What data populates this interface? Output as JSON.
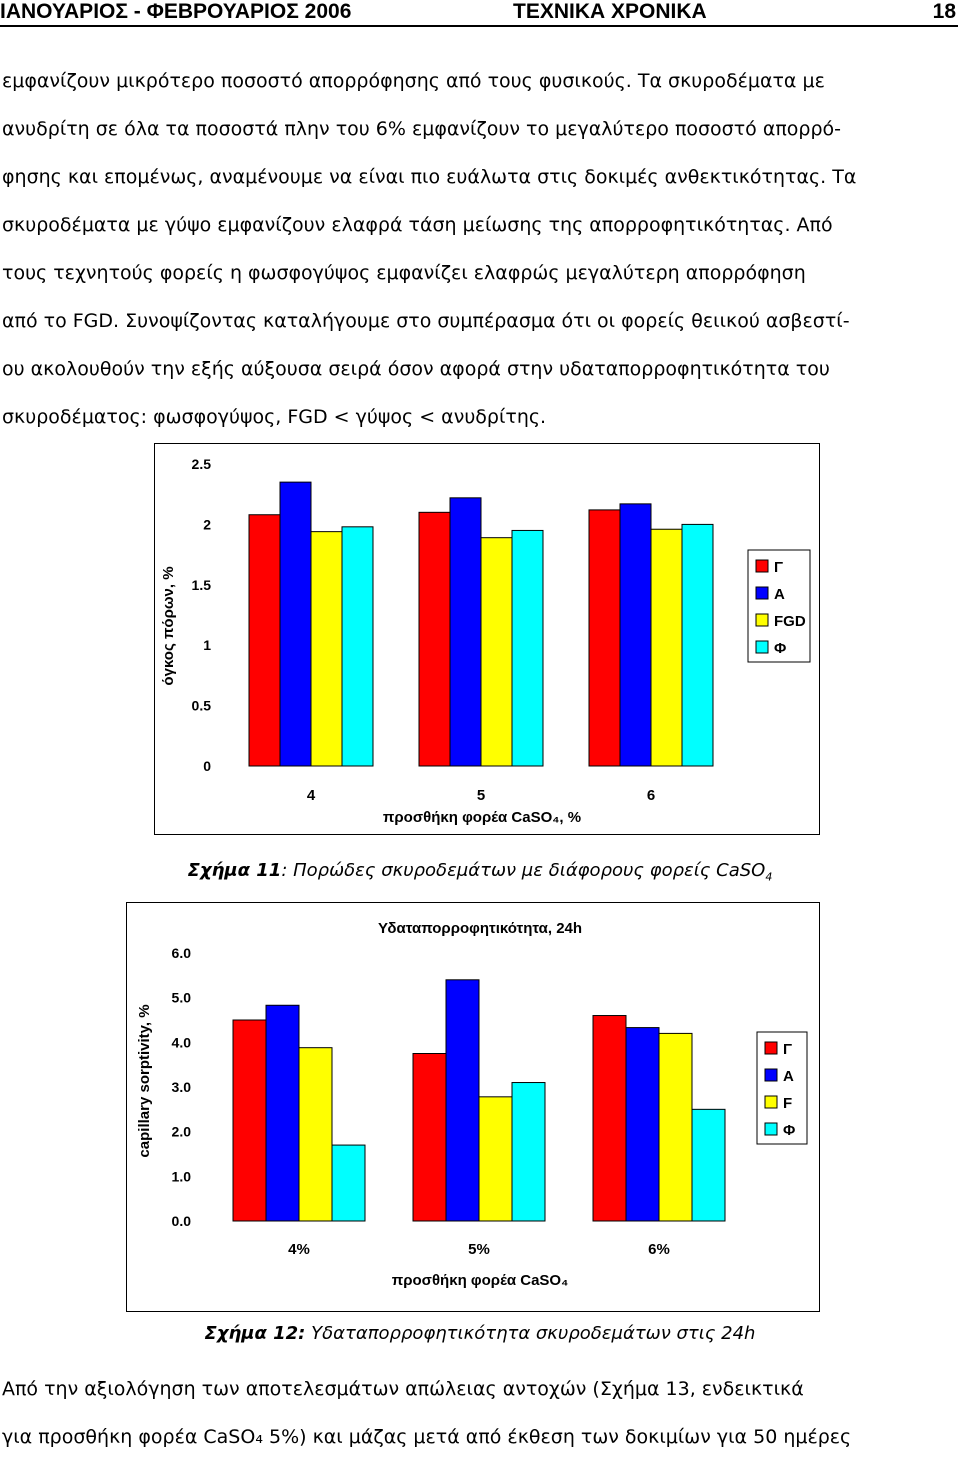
{
  "header": {
    "left": "ΙΑΝΟΥΑΡΙΟΣ - ΦΕΒΡΟΥΑΡΙΟΣ 2006",
    "center": "ΤΕΧΝΙΚΑ ΧΡΟΝΙΚΑ",
    "page": "18"
  },
  "paragraph1": [
    "εμφανίζουν μικρότερο ποσοστό απορρόφησης από τους φυσικούς. Τα σκυροδέματα με",
    "ανυδρίτη σε όλα τα ποσοστά πλην του 6% εμφανίζουν το μεγαλύτερο ποσοστό απορρό-",
    "φησης και επομένως, αναμένουμε να είναι πιο ευάλωτα στις δοκιμές ανθεκτικότητας. Τα",
    "σκυροδέματα με γύψο εμφανίζουν ελαφρά τάση μείωσης της απορροφητικότητας. Από",
    "τους τεχνητούς φορείς η φωσφογύψος εμφανίζει ελαφρώς μεγαλύτερη απορρόφηση",
    "από το FGD. Συνοψίζοντας καταλήγουμε στο συμπέρασμα ότι οι φορείς θειικού ασβεστί-",
    "ου ακολουθούν την εξής αύξουσα σειρά όσον αφορά στην υδαταπορροφητικότητα του",
    "σκυροδέματος: φωσφογύψος, FGD < γύψος < ανυδρίτης."
  ],
  "figure11": {
    "caption_label": "Σχήμα 11",
    "caption_text": ": Πορώδες σκυροδεμάτων με διάφορους φορείς CaSO",
    "caption_sub": "4"
  },
  "figure12": {
    "caption_label": "Σχήμα 12:",
    "caption_text": " Υδαταπορροφητικότητα σκυροδεμάτων στις 24h"
  },
  "paragraph2": [
    "Από την αξιολόγηση των αποτελεσμάτων απώλειας αντοχών (Σχήμα 13, ενδεικτικά",
    "για προσθήκη φορέα CaSO₄ 5%) και μάζας μετά από έκθεση των δοκιμίων για 50 ημέρες"
  ],
  "chart_data": [
    {
      "type": "bar",
      "title": "",
      "xlabel": "προσθήκη φορέα CaSO₄, %",
      "ylabel": "όγκος πόρων, %",
      "categories": [
        "4",
        "5",
        "6"
      ],
      "yticks": [
        "0",
        "0.5",
        "1",
        "1.5",
        "2",
        "2.5"
      ],
      "ylim": [
        0,
        2.5
      ],
      "legend": "right",
      "grid": false,
      "series": [
        {
          "name": "Γ",
          "color": "#ff0000",
          "values": [
            2.08,
            2.1,
            2.12
          ]
        },
        {
          "name": "Α",
          "color": "#0000ff",
          "values": [
            2.35,
            2.22,
            2.17
          ]
        },
        {
          "name": "FGD",
          "color": "#ffff00",
          "values": [
            1.94,
            1.89,
            1.96
          ]
        },
        {
          "name": "Φ",
          "color": "#00ffff",
          "values": [
            1.98,
            1.95,
            2.0
          ]
        }
      ]
    },
    {
      "type": "bar",
      "title": "Υδαταπορροφητικότητα, 24h",
      "xlabel": "προσθήκη φορέα CaSO₄",
      "ylabel": "capillary sorptivity, %",
      "categories": [
        "4%",
        "5%",
        "6%"
      ],
      "yticks": [
        "0.0",
        "1.0",
        "2.0",
        "3.0",
        "4.0",
        "5.0",
        "6.0"
      ],
      "ylim": [
        0,
        6
      ],
      "legend": "right",
      "grid": false,
      "series": [
        {
          "name": "Γ",
          "color": "#ff0000",
          "values": [
            4.5,
            3.75,
            4.6
          ]
        },
        {
          "name": "Α",
          "color": "#0000ff",
          "values": [
            4.83,
            5.4,
            4.33
          ]
        },
        {
          "name": "F",
          "color": "#ffff00",
          "values": [
            3.88,
            2.78,
            4.2
          ]
        },
        {
          "name": "Φ",
          "color": "#00ffff",
          "values": [
            1.7,
            3.1,
            2.5
          ]
        }
      ]
    }
  ]
}
